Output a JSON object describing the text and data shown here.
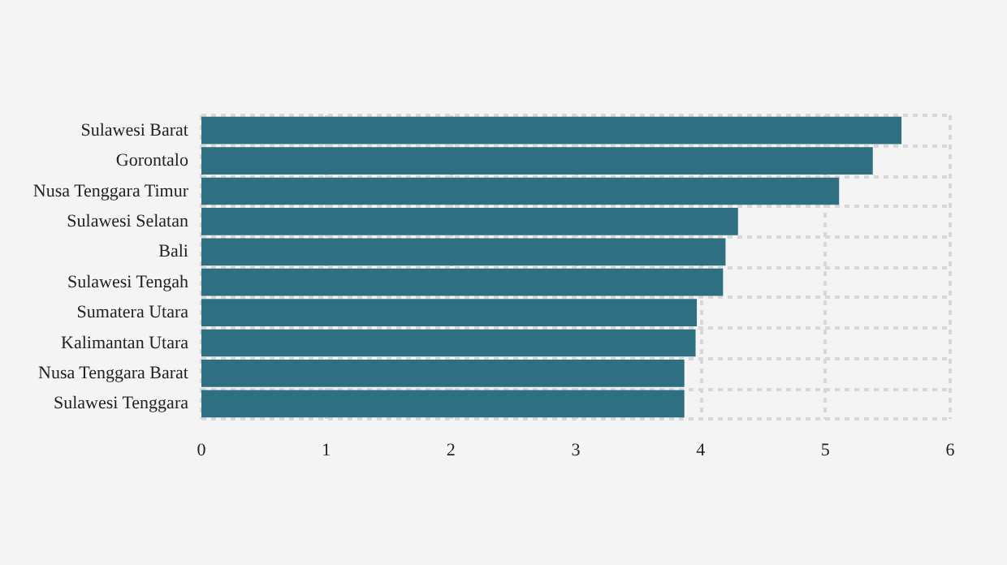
{
  "chart_data": {
    "type": "bar",
    "orientation": "horizontal",
    "categories": [
      "Sulawesi Barat",
      "Gorontalo",
      "Nusa Tenggara Timur",
      "Sulawesi Selatan",
      "Bali",
      "Sulawesi Tengah",
      "Sumatera Utara",
      "Kalimantan Utara",
      "Nusa Tenggara Barat",
      "Sulawesi Tenggara"
    ],
    "values": [
      5.61,
      5.38,
      5.11,
      4.3,
      4.2,
      4.18,
      3.97,
      3.96,
      3.87,
      3.87
    ],
    "color": "#2e6f82",
    "xlim": [
      0,
      6
    ],
    "xticks": [
      0,
      1,
      2,
      3,
      4,
      5,
      6
    ],
    "grid": true
  }
}
